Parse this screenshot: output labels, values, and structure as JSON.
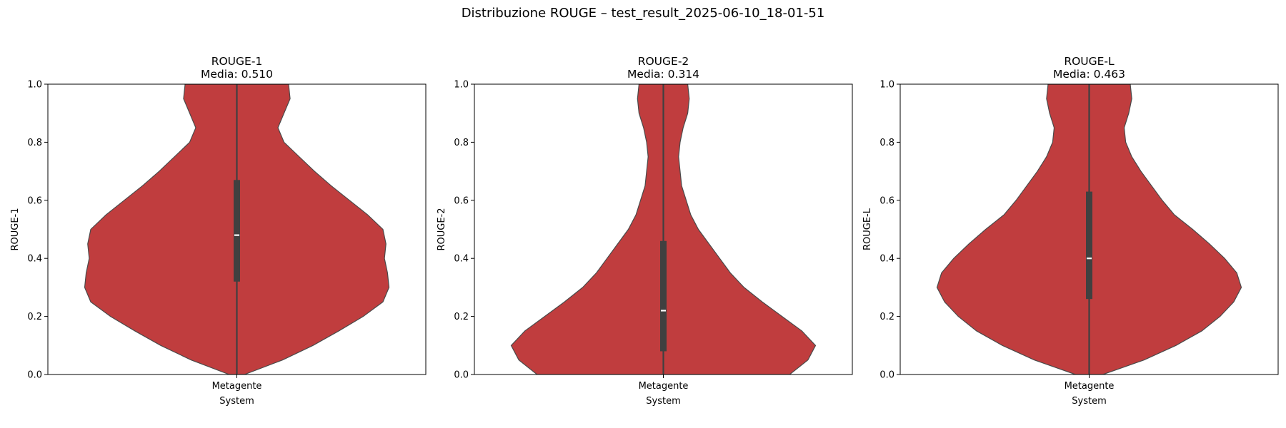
{
  "suptitle": "Distribuzione ROUGE – test_result_2025-06-10_18-01-51",
  "colors": {
    "violin_fill": "#c03d3e",
    "violin_edge": "#4a4a4a",
    "box": "#404040",
    "median": "#ffffff",
    "axes": "#000000"
  },
  "chart_data": [
    {
      "type": "violin",
      "title": "ROUGE-1",
      "subtitle": "Media: 0.510",
      "xlabel": "System",
      "ylabel": "ROUGE-1",
      "categories": [
        "Metagente"
      ],
      "ylim": [
        0,
        1
      ],
      "yticks": [
        "0.0",
        "0.2",
        "0.4",
        "0.6",
        "0.8",
        "1.0"
      ],
      "grid": false,
      "box": {
        "q1": 0.32,
        "median": 0.48,
        "q3": 0.67,
        "whisker_low": 0.0,
        "whisker_high": 1.0
      },
      "density": [
        [
          0.0,
          0.05
        ],
        [
          0.05,
          0.3
        ],
        [
          0.1,
          0.5
        ],
        [
          0.15,
          0.67
        ],
        [
          0.2,
          0.83
        ],
        [
          0.25,
          0.96
        ],
        [
          0.3,
          1.0
        ],
        [
          0.35,
          0.99
        ],
        [
          0.4,
          0.97
        ],
        [
          0.45,
          0.98
        ],
        [
          0.5,
          0.96
        ],
        [
          0.55,
          0.86
        ],
        [
          0.6,
          0.74
        ],
        [
          0.65,
          0.62
        ],
        [
          0.7,
          0.51
        ],
        [
          0.75,
          0.41
        ],
        [
          0.8,
          0.31
        ],
        [
          0.85,
          0.27
        ],
        [
          0.9,
          0.31
        ],
        [
          0.95,
          0.35
        ],
        [
          1.0,
          0.34
        ]
      ]
    },
    {
      "type": "violin",
      "title": "ROUGE-2",
      "subtitle": "Media: 0.314",
      "xlabel": "System",
      "ylabel": "ROUGE-2",
      "categories": [
        "Metagente"
      ],
      "ylim": [
        0,
        1
      ],
      "yticks": [
        "0.0",
        "0.2",
        "0.4",
        "0.6",
        "0.8",
        "1.0"
      ],
      "grid": false,
      "box": {
        "q1": 0.08,
        "median": 0.22,
        "q3": 0.46,
        "whisker_low": 0.0,
        "whisker_high": 1.0
      },
      "density": [
        [
          0.0,
          0.83
        ],
        [
          0.05,
          0.95
        ],
        [
          0.1,
          1.0
        ],
        [
          0.15,
          0.91
        ],
        [
          0.2,
          0.78
        ],
        [
          0.25,
          0.65
        ],
        [
          0.3,
          0.53
        ],
        [
          0.35,
          0.44
        ],
        [
          0.4,
          0.37
        ],
        [
          0.45,
          0.3
        ],
        [
          0.5,
          0.23
        ],
        [
          0.55,
          0.18
        ],
        [
          0.6,
          0.15
        ],
        [
          0.65,
          0.12
        ],
        [
          0.7,
          0.11
        ],
        [
          0.75,
          0.1
        ],
        [
          0.8,
          0.11
        ],
        [
          0.85,
          0.13
        ],
        [
          0.9,
          0.16
        ],
        [
          0.95,
          0.17
        ],
        [
          1.0,
          0.16
        ]
      ]
    },
    {
      "type": "violin",
      "title": "ROUGE-L",
      "subtitle": "Media: 0.463",
      "xlabel": "System",
      "ylabel": "ROUGE-L",
      "categories": [
        "Metagente"
      ],
      "ylim": [
        0,
        1
      ],
      "yticks": [
        "0.0",
        "0.2",
        "0.4",
        "0.6",
        "0.8",
        "1.0"
      ],
      "grid": false,
      "box": {
        "q1": 0.26,
        "median": 0.4,
        "q3": 0.63,
        "whisker_low": 0.0,
        "whisker_high": 1.0
      },
      "density": [
        [
          0.0,
          0.09
        ],
        [
          0.05,
          0.36
        ],
        [
          0.1,
          0.57
        ],
        [
          0.15,
          0.74
        ],
        [
          0.2,
          0.86
        ],
        [
          0.25,
          0.95
        ],
        [
          0.3,
          1.0
        ],
        [
          0.35,
          0.97
        ],
        [
          0.4,
          0.89
        ],
        [
          0.45,
          0.79
        ],
        [
          0.5,
          0.68
        ],
        [
          0.55,
          0.56
        ],
        [
          0.6,
          0.48
        ],
        [
          0.65,
          0.41
        ],
        [
          0.7,
          0.34
        ],
        [
          0.75,
          0.28
        ],
        [
          0.8,
          0.24
        ],
        [
          0.85,
          0.23
        ],
        [
          0.9,
          0.26
        ],
        [
          0.95,
          0.28
        ],
        [
          1.0,
          0.27
        ]
      ]
    }
  ]
}
